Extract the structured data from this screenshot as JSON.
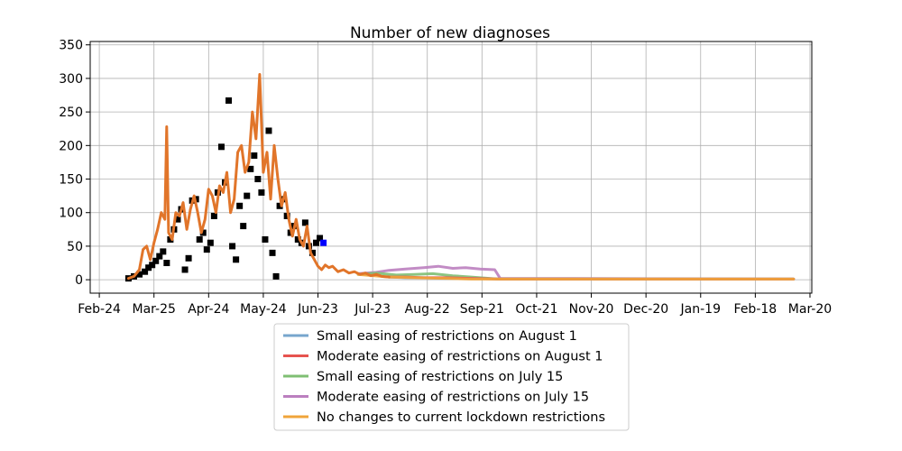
{
  "chart_data": {
    "type": "line",
    "title": "Number of new diagnoses",
    "xlabel": "",
    "ylabel": "",
    "ylim": [
      -20,
      355
    ],
    "y_ticks": [
      0,
      50,
      100,
      150,
      200,
      250,
      300,
      350
    ],
    "x_range": [
      "2020-02-19",
      "2021-03-21"
    ],
    "x_ticks": [
      {
        "date": "2020-02-24",
        "label": "Feb-24"
      },
      {
        "date": "2020-03-25",
        "label": "Mar-25"
      },
      {
        "date": "2020-04-24",
        "label": "Apr-24"
      },
      {
        "date": "2020-05-24",
        "label": "May-24"
      },
      {
        "date": "2020-06-23",
        "label": "Jun-23"
      },
      {
        "date": "2020-07-23",
        "label": "Jul-23"
      },
      {
        "date": "2020-08-22",
        "label": "Aug-22"
      },
      {
        "date": "2020-09-21",
        "label": "Sep-21"
      },
      {
        "date": "2020-10-21",
        "label": "Oct-21"
      },
      {
        "date": "2020-11-20",
        "label": "Nov-20"
      },
      {
        "date": "2020-12-20",
        "label": "Dec-20"
      },
      {
        "date": "2021-01-19",
        "label": "Jan-19"
      },
      {
        "date": "2021-02-18",
        "label": "Feb-18"
      },
      {
        "date": "2021-03-20",
        "label": "Mar-20"
      }
    ],
    "grid": true,
    "legend_position": "bottom-center",
    "observed": {
      "marker": "square",
      "color": "#000000",
      "points": [
        [
          "2020-03-11",
          2
        ],
        [
          "2020-03-14",
          5
        ],
        [
          "2020-03-17",
          8
        ],
        [
          "2020-03-20",
          12
        ],
        [
          "2020-03-22",
          18
        ],
        [
          "2020-03-24",
          22
        ],
        [
          "2020-03-26",
          28
        ],
        [
          "2020-03-28",
          35
        ],
        [
          "2020-03-30",
          42
        ],
        [
          "2020-04-01",
          25
        ],
        [
          "2020-04-03",
          60
        ],
        [
          "2020-04-05",
          75
        ],
        [
          "2020-04-07",
          90
        ],
        [
          "2020-04-09",
          105
        ],
        [
          "2020-04-11",
          15
        ],
        [
          "2020-04-13",
          32
        ],
        [
          "2020-04-15",
          118
        ],
        [
          "2020-04-17",
          120
        ],
        [
          "2020-04-19",
          60
        ],
        [
          "2020-04-21",
          70
        ],
        [
          "2020-04-23",
          45
        ],
        [
          "2020-04-25",
          55
        ],
        [
          "2020-04-27",
          95
        ],
        [
          "2020-04-29",
          130
        ],
        [
          "2020-05-01",
          198
        ],
        [
          "2020-05-03",
          145
        ],
        [
          "2020-05-05",
          267
        ],
        [
          "2020-05-07",
          50
        ],
        [
          "2020-05-09",
          30
        ],
        [
          "2020-05-11",
          110
        ],
        [
          "2020-05-13",
          80
        ],
        [
          "2020-05-15",
          125
        ],
        [
          "2020-05-17",
          165
        ],
        [
          "2020-05-19",
          185
        ],
        [
          "2020-05-21",
          150
        ],
        [
          "2020-05-23",
          130
        ],
        [
          "2020-05-25",
          60
        ],
        [
          "2020-05-27",
          222
        ],
        [
          "2020-05-29",
          40
        ],
        [
          "2020-05-31",
          5
        ],
        [
          "2020-06-02",
          110
        ],
        [
          "2020-06-04",
          120
        ],
        [
          "2020-06-06",
          95
        ],
        [
          "2020-06-08",
          70
        ],
        [
          "2020-06-10",
          80
        ],
        [
          "2020-06-12",
          60
        ],
        [
          "2020-06-14",
          55
        ],
        [
          "2020-06-16",
          85
        ],
        [
          "2020-06-18",
          50
        ],
        [
          "2020-06-20",
          40
        ],
        [
          "2020-06-22",
          55
        ],
        [
          "2020-06-24",
          62
        ]
      ],
      "latest_point": {
        "date": "2020-06-26",
        "value": 55,
        "color": "#0000ff"
      }
    },
    "model_fit": {
      "color": "#e1752a",
      "points": [
        [
          "2020-03-11",
          2
        ],
        [
          "2020-03-14",
          5
        ],
        [
          "2020-03-17",
          15
        ],
        [
          "2020-03-19",
          45
        ],
        [
          "2020-03-21",
          50
        ],
        [
          "2020-03-23",
          30
        ],
        [
          "2020-03-25",
          55
        ],
        [
          "2020-03-27",
          75
        ],
        [
          "2020-03-29",
          100
        ],
        [
          "2020-03-31",
          90
        ],
        [
          "2020-04-01",
          228
        ],
        [
          "2020-04-02",
          70
        ],
        [
          "2020-04-04",
          60
        ],
        [
          "2020-04-06",
          100
        ],
        [
          "2020-04-08",
          95
        ],
        [
          "2020-04-10",
          115
        ],
        [
          "2020-04-12",
          75
        ],
        [
          "2020-04-14",
          105
        ],
        [
          "2020-04-16",
          125
        ],
        [
          "2020-04-18",
          100
        ],
        [
          "2020-04-20",
          70
        ],
        [
          "2020-04-22",
          90
        ],
        [
          "2020-04-24",
          135
        ],
        [
          "2020-04-26",
          125
        ],
        [
          "2020-04-28",
          100
        ],
        [
          "2020-04-30",
          140
        ],
        [
          "2020-05-02",
          130
        ],
        [
          "2020-05-04",
          160
        ],
        [
          "2020-05-06",
          100
        ],
        [
          "2020-05-08",
          120
        ],
        [
          "2020-05-10",
          190
        ],
        [
          "2020-05-12",
          200
        ],
        [
          "2020-05-14",
          160
        ],
        [
          "2020-05-16",
          175
        ],
        [
          "2020-05-18",
          250
        ],
        [
          "2020-05-20",
          210
        ],
        [
          "2020-05-22",
          306
        ],
        [
          "2020-05-24",
          160
        ],
        [
          "2020-05-26",
          190
        ],
        [
          "2020-05-28",
          120
        ],
        [
          "2020-05-30",
          200
        ],
        [
          "2020-06-01",
          150
        ],
        [
          "2020-06-03",
          110
        ],
        [
          "2020-06-05",
          130
        ],
        [
          "2020-06-07",
          90
        ],
        [
          "2020-06-09",
          65
        ],
        [
          "2020-06-11",
          90
        ],
        [
          "2020-06-13",
          60
        ],
        [
          "2020-06-15",
          50
        ],
        [
          "2020-06-17",
          80
        ],
        [
          "2020-06-19",
          40
        ],
        [
          "2020-06-21",
          30
        ],
        [
          "2020-06-23",
          20
        ],
        [
          "2020-06-25",
          15
        ],
        [
          "2020-06-27",
          22
        ],
        [
          "2020-06-29",
          18
        ],
        [
          "2020-07-01",
          20
        ],
        [
          "2020-07-04",
          12
        ],
        [
          "2020-07-07",
          15
        ],
        [
          "2020-07-10",
          10
        ],
        [
          "2020-07-13",
          12
        ],
        [
          "2020-07-16",
          8
        ],
        [
          "2020-07-19",
          10
        ],
        [
          "2020-07-22",
          6
        ],
        [
          "2020-07-25",
          8
        ],
        [
          "2020-07-28",
          5
        ],
        [
          "2020-08-01",
          4
        ]
      ]
    },
    "series": [
      {
        "name": "Small easing of restrictions on August 1",
        "color": "#77a6cd",
        "points": [
          [
            "2020-08-01",
            4
          ],
          [
            "2020-08-10",
            3
          ],
          [
            "2020-08-20",
            3
          ],
          [
            "2020-09-01",
            2
          ],
          [
            "2020-09-15",
            2
          ],
          [
            "2020-10-01",
            1
          ],
          [
            "2021-03-11",
            1
          ]
        ]
      },
      {
        "name": "Moderate easing of restrictions on August 1",
        "color": "#e6534f",
        "points": [
          [
            "2020-08-01",
            4
          ],
          [
            "2020-08-10",
            4
          ],
          [
            "2020-08-20",
            3
          ],
          [
            "2020-09-01",
            3
          ],
          [
            "2020-09-15",
            2
          ],
          [
            "2020-10-01",
            1
          ],
          [
            "2021-03-11",
            1
          ]
        ]
      },
      {
        "name": "Small easing of restrictions on July 15",
        "color": "#7fbf73",
        "points": [
          [
            "2020-07-15",
            8
          ],
          [
            "2020-07-25",
            10
          ],
          [
            "2020-08-05",
            7
          ],
          [
            "2020-08-15",
            8
          ],
          [
            "2020-08-25",
            9
          ],
          [
            "2020-09-05",
            6
          ],
          [
            "2020-09-15",
            4
          ],
          [
            "2020-09-30",
            1
          ],
          [
            "2021-03-11",
            1
          ]
        ]
      },
      {
        "name": "Moderate easing of restrictions on July 15",
        "color": "#bb7fbf",
        "points": [
          [
            "2020-07-15",
            9
          ],
          [
            "2020-07-25",
            11
          ],
          [
            "2020-08-01",
            14
          ],
          [
            "2020-08-10",
            16
          ],
          [
            "2020-08-20",
            18
          ],
          [
            "2020-08-28",
            20
          ],
          [
            "2020-09-05",
            17
          ],
          [
            "2020-09-12",
            18
          ],
          [
            "2020-09-20",
            16
          ],
          [
            "2020-09-28",
            15
          ],
          [
            "2020-10-01",
            2
          ],
          [
            "2021-03-11",
            1
          ]
        ]
      },
      {
        "name": "No changes to current lockdown restrictions",
        "color": "#f0a43a",
        "points": [
          [
            "2020-07-15",
            8
          ],
          [
            "2020-08-01",
            4
          ],
          [
            "2020-08-15",
            3
          ],
          [
            "2020-09-01",
            2
          ],
          [
            "2020-09-15",
            1
          ],
          [
            "2020-10-01",
            1
          ],
          [
            "2021-03-11",
            1
          ]
        ]
      }
    ]
  }
}
